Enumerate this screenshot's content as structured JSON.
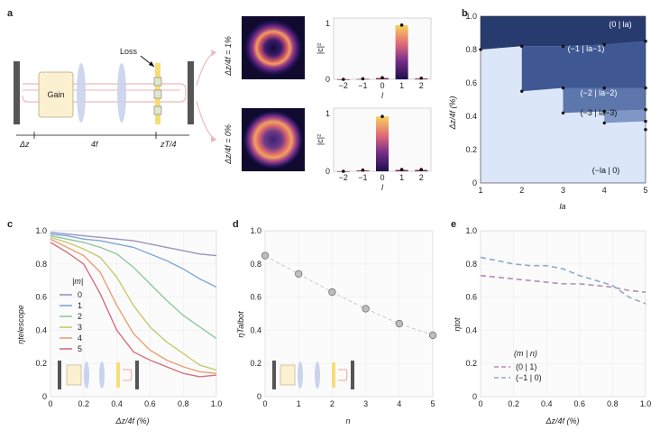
{
  "panels": {
    "a": {
      "label": "a",
      "optics": {
        "loss": "Loss",
        "gain": "Gain",
        "dz": "Δz",
        "four_f": "4f",
        "zt": "zT/4"
      },
      "rows": [
        {
          "ylabel": "Δz/4f = 1%",
          "bars": {
            "categories": [
              "−2",
              "−1",
              "0",
              "1",
              "2"
            ],
            "values": [
              0.0,
              0.01,
              0.03,
              0.97,
              0.02
            ],
            "ylim": [
              0,
              1
            ]
          }
        },
        {
          "ylabel": "Δz/4f = 0%",
          "bars": {
            "categories": [
              "−2",
              "−1",
              "0",
              "1",
              "2"
            ],
            "values": [
              0.0,
              0.02,
              0.95,
              0.03,
              0.03
            ],
            "ylim": [
              0,
              1
            ]
          }
        }
      ],
      "bar_ylabel": "|c|²",
      "bar_xlabel": "l",
      "ytick_labels": [
        "0",
        "1"
      ]
    },
    "b": {
      "label": "b",
      "xlabel": "la",
      "ylabel": "Δz/4f (%)",
      "xticks": [
        "1",
        "2",
        "3",
        "4",
        "5"
      ],
      "yticks": [
        "0",
        "0.2",
        "0.4",
        "0.6",
        "0.8",
        "1.0"
      ],
      "regions": [
        {
          "label": "(0 | la)",
          "color": "#283b6e"
        },
        {
          "label": "(−1 | la−1)",
          "color": "#3f5894"
        },
        {
          "label": "(−2 | la−2)",
          "color": "#5d77ac"
        },
        {
          "label": "(−3 | la−3)",
          "color": "#7f97c6"
        },
        {
          "label": "(−la | 0)",
          "color": "#dbe7f9"
        }
      ],
      "boundaries": [
        {
          "x": [
            1,
            2,
            2,
            3,
            3,
            4,
            4,
            5,
            5
          ],
          "y": [
            0.8,
            0.82,
            0.82,
            0.82,
            0.82,
            0.83,
            0.83,
            0.85,
            0.85
          ]
        },
        {
          "x": [
            2,
            3,
            3,
            4,
            4,
            5,
            5
          ],
          "y": [
            0.55,
            0.57,
            0.57,
            0.57,
            0.57,
            0.57,
            0.57
          ]
        },
        {
          "x": [
            3,
            4,
            4,
            5,
            5
          ],
          "y": [
            0.42,
            0.43,
            0.43,
            0.44,
            0.44
          ]
        },
        {
          "x": [
            4,
            5,
            5
          ],
          "y": [
            0.36,
            0.37,
            0.37
          ]
        },
        {
          "x": [
            5,
            5
          ],
          "y": [
            0.32,
            0.32
          ]
        }
      ]
    },
    "c": {
      "label": "c",
      "xlabel": "Δz/4f (%)",
      "ylabel": "ηtelescope",
      "legend_title": "|m|",
      "xticks": [
        "0",
        "0.2",
        "0.4",
        "0.6",
        "0.8",
        "1.0"
      ],
      "yticks": [
        "0",
        "0.2",
        "0.4",
        "0.6",
        "0.8",
        "1.0"
      ],
      "chart_data": {
        "type": "line",
        "x": [
          0,
          0.1,
          0.2,
          0.3,
          0.4,
          0.5,
          0.6,
          0.7,
          0.8,
          0.9,
          1.0
        ],
        "xlim": [
          0,
          1
        ],
        "ylim": [
          0,
          1
        ],
        "series": [
          {
            "name": "0",
            "color": "#9b93c4",
            "values": [
              0.99,
              0.98,
              0.97,
              0.96,
              0.95,
              0.94,
              0.92,
              0.9,
              0.88,
              0.86,
              0.85
            ]
          },
          {
            "name": "1",
            "color": "#7fa8d6",
            "values": [
              0.98,
              0.97,
              0.95,
              0.94,
              0.92,
              0.9,
              0.86,
              0.82,
              0.77,
              0.71,
              0.66
            ]
          },
          {
            "name": "2",
            "color": "#8fc89e",
            "values": [
              0.97,
              0.95,
              0.93,
              0.9,
              0.86,
              0.78,
              0.68,
              0.58,
              0.49,
              0.42,
              0.35
            ]
          },
          {
            "name": "3",
            "color": "#c8c86f",
            "values": [
              0.96,
              0.93,
              0.89,
              0.84,
              0.72,
              0.55,
              0.42,
              0.33,
              0.26,
              0.19,
              0.16
            ]
          },
          {
            "name": "4",
            "color": "#e9a070",
            "values": [
              0.95,
              0.9,
              0.85,
              0.75,
              0.55,
              0.38,
              0.28,
              0.22,
              0.18,
              0.15,
              0.14
            ]
          },
          {
            "name": "5",
            "color": "#d56f7e",
            "values": [
              0.93,
              0.87,
              0.8,
              0.62,
              0.4,
              0.27,
              0.22,
              0.18,
              0.14,
              0.12,
              0.13
            ]
          }
        ]
      }
    },
    "d": {
      "label": "d",
      "xlabel": "n",
      "ylabel": "ηTalbot",
      "xticks": [
        "0",
        "1",
        "2",
        "3",
        "4",
        "5"
      ],
      "yticks": [
        "0",
        "0.2",
        "0.4",
        "0.6",
        "0.8",
        "1.0"
      ],
      "chart_data": {
        "type": "scatter",
        "x": [
          0,
          1,
          2,
          3,
          4,
          5
        ],
        "values": [
          0.85,
          0.74,
          0.63,
          0.53,
          0.44,
          0.37
        ],
        "xlim": [
          0,
          5
        ],
        "ylim": [
          0,
          1
        ]
      }
    },
    "e": {
      "label": "e",
      "xlabel": "Δz/4f (%)",
      "ylabel": "ηtot",
      "legend_title": "(m | n)",
      "xticks": [
        "0",
        "0.2",
        "0.4",
        "0.6",
        "0.8",
        "1.0"
      ],
      "yticks": [
        "0",
        "0.2",
        "0.4",
        "0.6",
        "0.8",
        "1.0"
      ],
      "chart_data": {
        "type": "line",
        "x": [
          0,
          0.1,
          0.2,
          0.3,
          0.4,
          0.5,
          0.6,
          0.7,
          0.8,
          0.9,
          1.0
        ],
        "xlim": [
          0,
          1
        ],
        "ylim": [
          0,
          1
        ],
        "series": [
          {
            "name": "(0 | 1)",
            "color": "#b98bb5",
            "values": [
              0.73,
              0.72,
              0.71,
              0.7,
              0.69,
              0.68,
              0.68,
              0.67,
              0.66,
              0.64,
              0.63
            ]
          },
          {
            "name": "(−1 | 0)",
            "color": "#8fa9cc",
            "values": [
              0.84,
              0.82,
              0.8,
              0.79,
              0.79,
              0.77,
              0.73,
              0.7,
              0.67,
              0.6,
              0.56
            ]
          }
        ]
      }
    }
  }
}
